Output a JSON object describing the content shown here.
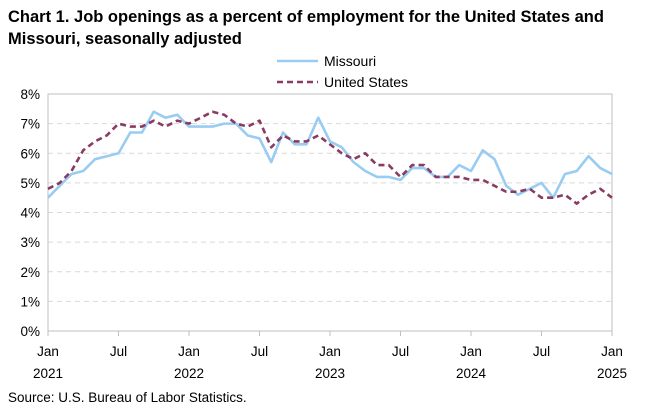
{
  "chart_data": {
    "type": "line",
    "title": "Chart 1. Job openings as a percent of employment for the United States and Missouri, seasonally adjusted",
    "source": "Source: U.S. Bureau of Labor Statistics.",
    "xlabel": "",
    "ylabel": "",
    "ylim": [
      0,
      8
    ],
    "y_ticks": [
      "0%",
      "1%",
      "2%",
      "3%",
      "4%",
      "5%",
      "6%",
      "7%",
      "8%"
    ],
    "x_ticks": [
      {
        "index": 0,
        "month": "Jan",
        "year": "2021"
      },
      {
        "index": 6,
        "month": "Jul",
        "year": ""
      },
      {
        "index": 12,
        "month": "Jan",
        "year": "2022"
      },
      {
        "index": 18,
        "month": "Jul",
        "year": ""
      },
      {
        "index": 24,
        "month": "Jan",
        "year": "2023"
      },
      {
        "index": 30,
        "month": "Jul",
        "year": ""
      },
      {
        "index": 36,
        "month": "Jan",
        "year": "2024"
      },
      {
        "index": 42,
        "month": "Jul",
        "year": ""
      },
      {
        "index": 48,
        "month": "Jan",
        "year": "2025"
      }
    ],
    "grid": "horizontal dashed",
    "legend_position": "top-right",
    "x": [
      "2021-01",
      "2021-02",
      "2021-03",
      "2021-04",
      "2021-05",
      "2021-06",
      "2021-07",
      "2021-08",
      "2021-09",
      "2021-10",
      "2021-11",
      "2021-12",
      "2022-01",
      "2022-02",
      "2022-03",
      "2022-04",
      "2022-05",
      "2022-06",
      "2022-07",
      "2022-08",
      "2022-09",
      "2022-10",
      "2022-11",
      "2022-12",
      "2023-01",
      "2023-02",
      "2023-03",
      "2023-04",
      "2023-05",
      "2023-06",
      "2023-07",
      "2023-08",
      "2023-09",
      "2023-10",
      "2023-11",
      "2023-12",
      "2024-01",
      "2024-02",
      "2024-03",
      "2024-04",
      "2024-05",
      "2024-06",
      "2024-07",
      "2024-08",
      "2024-09",
      "2024-10",
      "2024-11",
      "2024-12",
      "2025-01"
    ],
    "series": [
      {
        "name": "Missouri",
        "color": "#99ccf2",
        "style": "solid",
        "values": [
          4.5,
          4.9,
          5.3,
          5.4,
          5.8,
          5.9,
          6.0,
          6.7,
          6.7,
          7.4,
          7.2,
          7.3,
          6.9,
          6.9,
          6.9,
          7.0,
          7.0,
          6.6,
          6.5,
          5.7,
          6.7,
          6.3,
          6.3,
          7.2,
          6.4,
          6.2,
          5.7,
          5.4,
          5.2,
          5.2,
          5.1,
          5.5,
          5.5,
          5.2,
          5.2,
          5.6,
          5.4,
          6.1,
          5.8,
          4.9,
          4.6,
          4.8,
          5.0,
          4.5,
          5.3,
          5.4,
          5.9,
          5.5,
          5.3
        ]
      },
      {
        "name": "United States",
        "color": "#8a3b61",
        "style": "dashed",
        "values": [
          4.8,
          5.0,
          5.4,
          6.1,
          6.4,
          6.6,
          7.0,
          6.9,
          6.9,
          7.1,
          6.9,
          7.1,
          7.0,
          7.2,
          7.4,
          7.3,
          7.0,
          6.9,
          7.1,
          6.2,
          6.6,
          6.4,
          6.4,
          6.6,
          6.3,
          6.0,
          5.8,
          6.0,
          5.6,
          5.6,
          5.2,
          5.6,
          5.6,
          5.2,
          5.2,
          5.2,
          5.1,
          5.1,
          4.9,
          4.7,
          4.7,
          4.8,
          4.5,
          4.5,
          4.6,
          4.3,
          4.6,
          4.8,
          4.5
        ]
      }
    ]
  }
}
